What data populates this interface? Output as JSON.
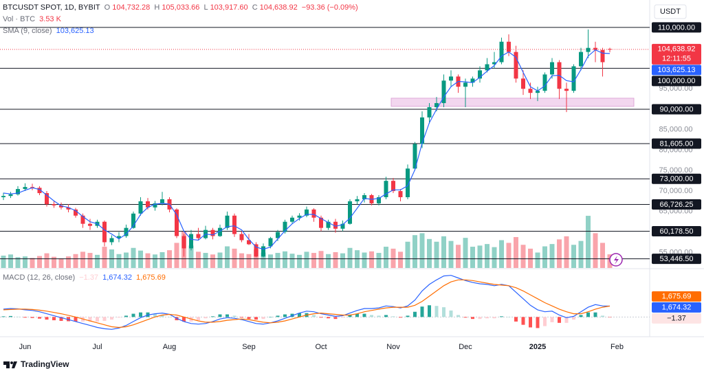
{
  "chart_data": {
    "type": "candlestick",
    "title": "BTCUSDT SPOT, 1D, BYBIT",
    "legend": {
      "ohlc": [
        {
          "key": "O",
          "text": "104,732.28"
        },
        {
          "key": "H",
          "text": "105,033.66"
        },
        {
          "key": "L",
          "text": "103,917.60"
        },
        {
          "key": "C",
          "text": "104,638.92"
        }
      ],
      "change": "−93.36 (−0.09%)",
      "value_color": "#f23645"
    },
    "currency": "USDT",
    "categories": [
      null,
      null,
      null,
      "Jun",
      null,
      null,
      null,
      null,
      null,
      null,
      null,
      null,
      null,
      "Jul",
      null,
      null,
      null,
      null,
      null,
      null,
      null,
      null,
      null,
      "Aug",
      null,
      null,
      null,
      null,
      null,
      null,
      null,
      null,
      null,
      null,
      "Sep",
      null,
      null,
      null,
      null,
      null,
      null,
      null,
      null,
      null,
      "Oct",
      null,
      null,
      null,
      null,
      null,
      null,
      null,
      null,
      null,
      "Nov",
      null,
      null,
      null,
      null,
      null,
      null,
      null,
      null,
      null,
      "Dec",
      null,
      null,
      null,
      null,
      null,
      null,
      null,
      null,
      null,
      "2025",
      null,
      null,
      null,
      null,
      null,
      null,
      null,
      null,
      null,
      null,
      "Feb"
    ],
    "ohlc": {
      "up_color": "#089981",
      "down_color": "#f23645",
      "open": [
        68500,
        68800,
        69200,
        70500,
        71000,
        70800,
        69500,
        66800,
        66500,
        66000,
        65500,
        64000,
        62000,
        61500,
        62500,
        57500,
        58500,
        59000,
        61000,
        64500,
        67500,
        66000,
        67000,
        68000,
        65500,
        59000,
        56000,
        59500,
        58500,
        60500,
        59000,
        61000,
        64000,
        59500,
        58000,
        57000,
        54000,
        56500,
        58500,
        60000,
        62500,
        63500,
        64000,
        65500,
        63500,
        61000,
        62500,
        60800,
        62000,
        67500,
        68000,
        69000,
        67000,
        68500,
        72500,
        70000,
        68500,
        75500,
        81500,
        88000,
        90500,
        91500,
        97000,
        98000,
        95500,
        96500,
        97500,
        99500,
        101000,
        101500,
        106500,
        104000,
        97500,
        95000,
        94000,
        94500,
        98500,
        101500,
        95000,
        94500,
        100500,
        104000,
        105000,
        104500,
        104732.28,
        null
      ],
      "high": [
        69600,
        69800,
        71200,
        71900,
        71800,
        71200,
        70000,
        67500,
        67200,
        66800,
        65900,
        64500,
        63200,
        63000,
        62800,
        59200,
        60000,
        61800,
        65000,
        68500,
        68300,
        67600,
        69800,
        68500,
        65800,
        59500,
        60500,
        61000,
        61500,
        61000,
        61800,
        65000,
        64500,
        60200,
        59500,
        57500,
        57200,
        58800,
        60500,
        63000,
        64000,
        64600,
        66200,
        65800,
        64000,
        63000,
        63200,
        62800,
        68000,
        68800,
        69500,
        69300,
        69000,
        73500,
        73200,
        70500,
        76500,
        82000,
        89500,
        91500,
        93000,
        98500,
        99500,
        98500,
        97500,
        98000,
        100500,
        102500,
        104000,
        107500,
        108300,
        105500,
        99500,
        96500,
        95500,
        99000,
        102500,
        102000,
        96500,
        101000,
        105000,
        109500,
        106500,
        105000,
        105033.66,
        null
      ],
      "low": [
        67800,
        68300,
        68900,
        70000,
        70200,
        69000,
        66200,
        65900,
        65500,
        64800,
        63500,
        61000,
        60500,
        61000,
        56500,
        56800,
        57500,
        58600,
        60800,
        64000,
        65500,
        65200,
        66500,
        64800,
        58500,
        54000,
        55500,
        58000,
        58200,
        58200,
        58800,
        60500,
        58800,
        57500,
        56800,
        53800,
        53800,
        56000,
        57800,
        59600,
        62000,
        62800,
        63600,
        62500,
        60200,
        60500,
        59800,
        60200,
        61800,
        66800,
        67200,
        66500,
        66500,
        68000,
        69500,
        67500,
        68000,
        75000,
        80500,
        86500,
        89500,
        90500,
        95500,
        94000,
        90500,
        95500,
        96500,
        99000,
        100000,
        101000,
        103000,
        96500,
        93500,
        92500,
        92000,
        94000,
        97500,
        92500,
        89300,
        94000,
        99500,
        102500,
        101500,
        98000,
        103917.6,
        null
      ],
      "close": [
        68800,
        69200,
        70500,
        71000,
        70800,
        69500,
        66800,
        66500,
        66000,
        65500,
        64000,
        62000,
        61500,
        62500,
        57500,
        58500,
        59000,
        61000,
        64500,
        67500,
        66000,
        67000,
        68000,
        65500,
        59000,
        56000,
        59500,
        58500,
        60500,
        59000,
        61000,
        64000,
        59500,
        58000,
        57000,
        54000,
        56500,
        58500,
        60000,
        62500,
        63500,
        64000,
        65500,
        63500,
        61000,
        62500,
        60800,
        62000,
        67500,
        68000,
        69000,
        67000,
        68500,
        72500,
        70000,
        68500,
        75500,
        81500,
        88000,
        90500,
        91500,
        97000,
        98000,
        95500,
        96500,
        97500,
        99500,
        101000,
        101500,
        106500,
        104000,
        97500,
        95000,
        94000,
        94500,
        98500,
        101500,
        95000,
        94500,
        100500,
        104000,
        105000,
        104500,
        101500,
        104638.92,
        null
      ]
    },
    "sma": {
      "name": "SMA (9, close)",
      "color": "#2962ff",
      "value_label": "103,625.13",
      "values": [
        69500,
        69300,
        69500,
        70200,
        70800,
        70400,
        69000,
        67600,
        66400,
        66000,
        65200,
        63800,
        62500,
        62000,
        60500,
        59500,
        58300,
        59500,
        61500,
        64300,
        66000,
        66800,
        67000,
        66800,
        64200,
        60200,
        58200,
        58000,
        59500,
        59300,
        60200,
        61300,
        61500,
        60500,
        58200,
        56300,
        55800,
        56300,
        58300,
        60300,
        62000,
        63300,
        64300,
        64300,
        63300,
        62300,
        61400,
        61800,
        63400,
        65800,
        68200,
        68000,
        68200,
        69300,
        70300,
        70300,
        71300,
        75200,
        81700,
        86700,
        90000,
        93000,
        95500,
        96800,
        96700,
        96500,
        97800,
        99300,
        100700,
        103000,
        104000,
        102700,
        99000,
        95500,
        94500,
        95700,
        98200,
        98300,
        97000,
        96700,
        99700,
        103000,
        104500,
        103700,
        103625.13,
        null
      ]
    },
    "volume": {
      "name": "Vol · BTC",
      "value_label": "3.53 K",
      "vlim": [
        0,
        16
      ],
      "values": [
        3.2,
        3.5,
        2.8,
        3.0,
        2.6,
        3.1,
        3.8,
        2.9,
        2.5,
        3.0,
        3.6,
        4.2,
        3.9,
        3.4,
        5.5,
        4.8,
        3.6,
        4.0,
        5.2,
        4.5,
        3.8,
        3.5,
        4.1,
        4.6,
        6.5,
        9.5,
        5.8,
        4.2,
        3.9,
        3.5,
        4.0,
        5.6,
        5.0,
        3.8,
        3.6,
        4.8,
        4.0,
        3.5,
        3.9,
        4.3,
        3.7,
        3.4,
        4.2,
        3.9,
        4.4,
        3.6,
        4.1,
        3.8,
        5.2,
        4.6,
        4.0,
        4.3,
        3.9,
        5.5,
        5.0,
        4.2,
        6.8,
        8.5,
        9.0,
        7.5,
        6.8,
        8.2,
        7.0,
        6.0,
        7.8,
        5.5,
        5.8,
        6.2,
        5.4,
        7.2,
        6.5,
        8.0,
        6.0,
        5.0,
        4.0,
        5.6,
        6.2,
        7.4,
        8.2,
        6.0,
        7.0,
        13.5,
        9.0,
        6.5,
        3.53,
        null
      ]
    },
    "ylim": [
      51200,
      116700
    ],
    "grid": false,
    "yticks": [
      {
        "value": 95000,
        "label": "95,000.00"
      },
      {
        "value": 85000,
        "label": "85,000.00"
      },
      {
        "value": 80000,
        "label": "80,000.00"
      },
      {
        "value": 75000,
        "label": "75,000.00"
      },
      {
        "value": 70000,
        "label": "70,000.00"
      },
      {
        "value": 65000,
        "label": "65,000.00"
      },
      {
        "value": 55000,
        "label": "55,000.00"
      }
    ],
    "levels": [
      {
        "value": 110000,
        "label": "110,000.00"
      },
      {
        "value": 100000,
        "label": "100,000.00"
      },
      {
        "value": 90000,
        "label": "90,000.00"
      },
      {
        "value": 81605,
        "label": "81,605.00"
      },
      {
        "value": 73000,
        "label": "73,000.00"
      },
      {
        "value": 66726.25,
        "label": "66,726.25"
      },
      {
        "value": 60178.5,
        "label": "60,178.50"
      },
      {
        "value": 53446.5,
        "label": "53,446.50"
      }
    ],
    "zone": {
      "from": 90700,
      "to": 92700,
      "start_index": 54,
      "color": "#f3d7ef"
    },
    "last_price": {
      "value": 104638.92,
      "label": "104,638.92",
      "countdown": "12:11:55",
      "color": "#f23645"
    },
    "macd": {
      "title": "MACD (12, 26, close)",
      "lim": [
        -2500,
        7000
      ],
      "macd": {
        "color": "#2962ff",
        "value_label": "1,674.32",
        "values": [
          1200,
          1300,
          1250,
          1100,
          1000,
          800,
          500,
          200,
          -100,
          -400,
          -700,
          -1000,
          -1300,
          -1600,
          -1800,
          -1900,
          -1700,
          -1300,
          -700,
          -100,
          300,
          500,
          600,
          400,
          -200,
          -700,
          -1000,
          -1100,
          -1000,
          -700,
          -300,
          -100,
          -200,
          -400,
          -700,
          -1000,
          -1100,
          -900,
          -600,
          -200,
          200,
          600,
          900,
          800,
          500,
          300,
          100,
          200,
          600,
          1000,
          1300,
          1300,
          1400,
          1700,
          1600,
          1400,
          1700,
          2600,
          4000,
          5000,
          5700,
          6300,
          6400,
          6000,
          5600,
          5300,
          5100,
          5000,
          4800,
          5000,
          4800,
          3800,
          2800,
          1800,
          1100,
          800,
          900,
          300,
          -100,
          100,
          800,
          1500,
          1900,
          1700,
          1674.32,
          null
        ]
      },
      "signal": {
        "color": "#ff6d00",
        "value_label": "1,675.69",
        "values": [
          1100,
          1150,
          1200,
          1200,
          1150,
          1050,
          900,
          700,
          500,
          250,
          0,
          -300,
          -600,
          -900,
          -1200,
          -1500,
          -1600,
          -1500,
          -1200,
          -800,
          -400,
          0,
          300,
          400,
          300,
          0,
          -300,
          -600,
          -800,
          -800,
          -700,
          -500,
          -400,
          -300,
          -400,
          -600,
          -800,
          -900,
          -800,
          -600,
          -300,
          0,
          300,
          500,
          600,
          500,
          400,
          300,
          300,
          500,
          800,
          1000,
          1200,
          1400,
          1500,
          1500,
          1500,
          1800,
          2400,
          3200,
          4000,
          4800,
          5400,
          5700,
          5700,
          5600,
          5400,
          5200,
          5000,
          4900,
          4800,
          4500,
          4000,
          3400,
          2800,
          2200,
          1700,
          1200,
          800,
          500,
          500,
          800,
          1200,
          1500,
          1675.69,
          null
        ]
      },
      "histogram": {
        "value_label": "−1.37",
        "colors": [
          "#26a69a",
          "#b2dfdb",
          "#ffcdd2",
          "#ff5252"
        ],
        "values": [
          100,
          150,
          50,
          -100,
          -150,
          -250,
          -400,
          -500,
          -600,
          -650,
          -700,
          -700,
          -700,
          -700,
          -600,
          -400,
          -100,
          200,
          500,
          700,
          700,
          500,
          300,
          0,
          -500,
          -700,
          -700,
          -500,
          -200,
          100,
          400,
          400,
          200,
          -100,
          -300,
          -400,
          -300,
          0,
          200,
          400,
          500,
          600,
          600,
          300,
          -100,
          -200,
          -300,
          -100,
          300,
          500,
          500,
          300,
          200,
          300,
          100,
          -100,
          200,
          800,
          1600,
          1800,
          1700,
          1500,
          1000,
          300,
          -100,
          -300,
          -300,
          -200,
          -200,
          100,
          0,
          -700,
          -1200,
          -1600,
          -1700,
          -1400,
          -800,
          -900,
          -900,
          -400,
          300,
          700,
          700,
          200,
          -1.37,
          null
        ]
      }
    }
  },
  "brand": "TradingView"
}
